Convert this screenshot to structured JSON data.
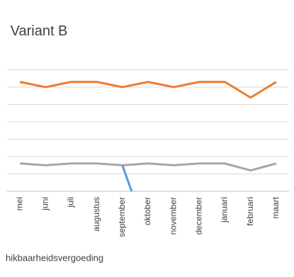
{
  "chart_data": {
    "type": "line",
    "title": "Variant B",
    "categories": [
      "mei",
      "juni",
      "juli",
      "augustus",
      "september",
      "oktober",
      "november",
      "december",
      "januari",
      "februari",
      "maart"
    ],
    "series": [
      {
        "color": "#ed7d31",
        "values": [
          6.3,
          6.0,
          6.3,
          6.3,
          6.0,
          6.3,
          6.0,
          6.3,
          6.3,
          5.4,
          6.3
        ]
      },
      {
        "color": "#a5a5a5",
        "values": [
          1.6,
          1.5,
          1.6,
          1.6,
          1.5,
          1.6,
          1.5,
          1.6,
          1.6,
          1.2,
          1.6
        ]
      },
      {
        "name": "hikbaarheidsvergoeding",
        "color": "#5b9bd5",
        "values": [
          null,
          null,
          null,
          null,
          1.5,
          -2.7,
          null,
          null,
          null,
          null,
          null
        ]
      }
    ],
    "ylim": [
      0,
      7
    ],
    "yticks": [
      0,
      1,
      2,
      3,
      4,
      5,
      6,
      7
    ],
    "grid": true
  }
}
